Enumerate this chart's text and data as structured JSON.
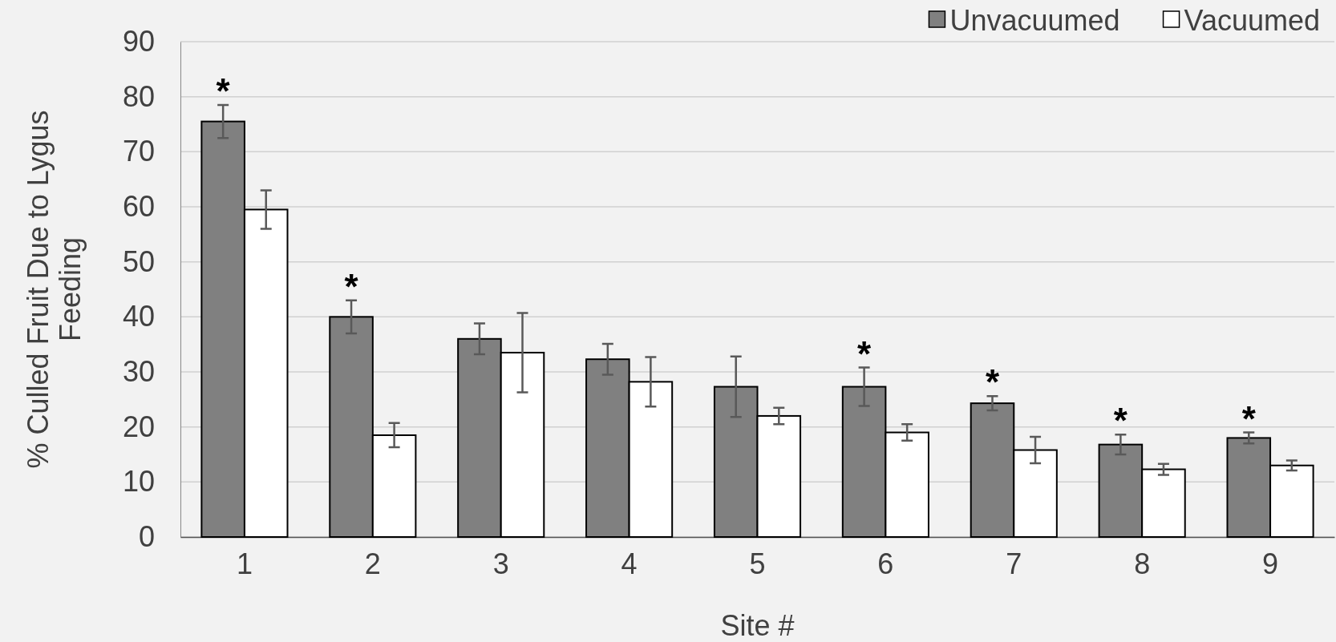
{
  "chart_data": {
    "type": "bar",
    "xlabel": "Site #",
    "ylabel": "% Culled Fruit Due to Lygus Feeding",
    "categories": [
      "1",
      "2",
      "3",
      "4",
      "5",
      "6",
      "7",
      "8",
      "9"
    ],
    "series": [
      {
        "name": "Unvacuumed",
        "color": "#808080",
        "values": [
          75.5,
          40,
          36,
          32.3,
          27.3,
          27.3,
          24.3,
          16.8,
          18
        ],
        "errors": [
          3,
          3,
          2.8,
          2.8,
          5.5,
          3.5,
          1.3,
          1.8,
          1
        ]
      },
      {
        "name": "Vacuumed",
        "color": "#ffffff",
        "values": [
          59.5,
          18.5,
          33.5,
          28.2,
          22,
          19,
          15.8,
          12.3,
          13
        ],
        "errors": [
          3.5,
          2.2,
          7.2,
          4.5,
          1.5,
          1.5,
          2.4,
          1,
          0.9
        ]
      }
    ],
    "ylim": [
      0,
      90
    ],
    "yticks": [
      0,
      10,
      20,
      30,
      40,
      50,
      60,
      70,
      80,
      90
    ],
    "grid": "y",
    "legend": "top right",
    "annotations": [
      {
        "text": "*",
        "x": "1",
        "y": 75.5
      },
      {
        "text": "*",
        "x": "2",
        "y": 40
      },
      {
        "text": "*",
        "x": "6",
        "y": 27.3
      },
      {
        "text": "*",
        "x": "7",
        "y": 24.3
      },
      {
        "text": "*",
        "x": "8",
        "y": 16.8
      },
      {
        "text": "*",
        "x": "9",
        "y": 18
      }
    ]
  }
}
